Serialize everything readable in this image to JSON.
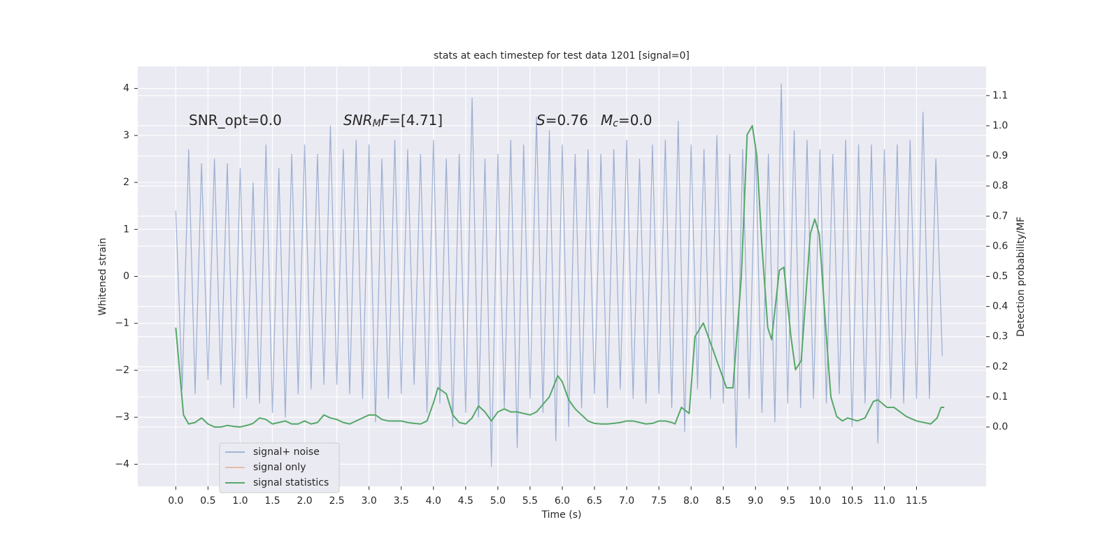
{
  "chart_data": {
    "type": "line",
    "title": "stats at each timestep for test data 1201 [signal=0]",
    "xlabel": "Time (s)",
    "ylabel": "Whitened strain",
    "y2label": "Detection probability/MF",
    "annotations": [
      {
        "parts": [
          {
            "text": "SNR_opt=0.0"
          }
        ]
      },
      {
        "parts": [
          {
            "text": "SNR",
            "style": "italic"
          },
          {
            "text": "M",
            "style": "sub"
          },
          {
            "text": "F",
            "style": "italic"
          },
          {
            "text": "=[4.71]"
          }
        ]
      },
      {
        "parts": [
          {
            "text": "S",
            "style": "italic"
          },
          {
            "text": "=0.76"
          }
        ]
      },
      {
        "parts": [
          {
            "text": "M",
            "style": "italic"
          },
          {
            "text": "c",
            "style": "sub"
          },
          {
            "text": "=0.0"
          }
        ]
      }
    ],
    "xlim": [
      -0.59,
      12.58
    ],
    "ylim": [
      -4.47,
      4.47
    ],
    "y2lim": [
      -0.197,
      1.197
    ],
    "xticks": [
      {
        "value": 0,
        "label": "0.0"
      },
      {
        "value": 0.5,
        "label": "0.5"
      },
      {
        "value": 1,
        "label": "1.0"
      },
      {
        "value": 1.5,
        "label": "1.5"
      },
      {
        "value": 2,
        "label": "2.0"
      },
      {
        "value": 2.5,
        "label": "2.5"
      },
      {
        "value": 3,
        "label": "3.0"
      },
      {
        "value": 3.5,
        "label": "3.5"
      },
      {
        "value": 4,
        "label": "4.0"
      },
      {
        "value": 4.5,
        "label": "4.5"
      },
      {
        "value": 5,
        "label": "5.0"
      },
      {
        "value": 5.5,
        "label": "5.5"
      },
      {
        "value": 6,
        "label": "6.0"
      },
      {
        "value": 6.5,
        "label": "6.5"
      },
      {
        "value": 7,
        "label": "7.0"
      },
      {
        "value": 7.5,
        "label": "7.5"
      },
      {
        "value": 8,
        "label": "8.0"
      },
      {
        "value": 8.5,
        "label": "8.5"
      },
      {
        "value": 9,
        "label": "9.0"
      },
      {
        "value": 9.5,
        "label": "9.5"
      },
      {
        "value": 10,
        "label": "10.0"
      },
      {
        "value": 10.5,
        "label": "10.5"
      },
      {
        "value": 11,
        "label": "11.0"
      },
      {
        "value": 11.5,
        "label": "11.5"
      }
    ],
    "yticks": [
      {
        "value": -4,
        "label": "−4"
      },
      {
        "value": -3,
        "label": "−3"
      },
      {
        "value": -2,
        "label": "−2"
      },
      {
        "value": -1,
        "label": "−1"
      },
      0,
      1,
      2,
      3,
      4
    ],
    "y2ticks": [
      {
        "value": 0,
        "label": "0.0"
      },
      0.1,
      0.2,
      0.3,
      0.4,
      0.5,
      0.6,
      0.7,
      0.8,
      0.9,
      {
        "value": 1,
        "label": "1.0"
      },
      1.1
    ],
    "grid": true,
    "legend": "lower left",
    "series": [
      {
        "name": "signal+ noise",
        "color": "#4c72b0",
        "x": [
          0,
          0.1,
          0.2,
          0.3,
          0.4,
          0.5,
          0.6,
          0.7,
          0.8,
          0.9,
          1,
          1.1,
          1.2,
          1.3,
          1.4,
          1.5,
          1.6,
          1.7,
          1.8,
          1.9,
          2,
          2.1,
          2.2,
          2.3,
          2.4,
          2.5,
          2.6,
          2.7,
          2.8,
          2.9,
          3,
          3.1,
          3.2,
          3.3,
          3.4,
          3.5,
          3.6,
          3.7,
          3.8,
          3.9,
          4,
          4.1,
          4.2,
          4.3,
          4.4,
          4.5,
          4.6,
          4.7,
          4.8,
          4.9,
          5,
          5.1,
          5.2,
          5.3,
          5.4,
          5.5,
          5.6,
          5.7,
          5.8,
          5.9,
          6,
          6.1,
          6.2,
          6.3,
          6.4,
          6.5,
          6.6,
          6.7,
          6.8,
          6.9,
          7,
          7.1,
          7.2,
          7.3,
          7.4,
          7.5,
          7.6,
          7.7,
          7.8,
          7.9,
          8,
          8.1,
          8.2,
          8.3,
          8.4,
          8.5,
          8.6,
          8.7,
          8.8,
          8.9,
          9,
          9.1,
          9.2,
          9.3,
          9.4,
          9.5,
          9.6,
          9.7,
          9.8,
          9.9,
          10,
          10.1,
          10.2,
          10.3,
          10.4,
          10.5,
          10.6,
          10.7,
          10.8,
          10.9,
          11,
          11.1,
          11.2,
          11.3,
          11.4,
          11.5,
          11.6,
          11.7,
          11.8,
          11.9
        ],
        "values": [
          1.4,
          -2.4,
          2.7,
          -2.5,
          2.4,
          -2.2,
          2.5,
          -2.3,
          2.4,
          -2.8,
          2.3,
          -2.6,
          2.0,
          -2.7,
          2.8,
          -2.9,
          2.3,
          -3.0,
          2.6,
          -2.5,
          2.8,
          -2.4,
          2.6,
          -2.3,
          3.2,
          -2.3,
          2.7,
          -2.5,
          2.9,
          -2.6,
          2.8,
          -3.1,
          2.5,
          -2.6,
          2.9,
          -2.5,
          2.7,
          -2.3,
          2.6,
          -2.9,
          2.9,
          -2.7,
          2.5,
          -3.2,
          2.6,
          -2.9,
          3.8,
          -3.0,
          2.5,
          -4.05,
          2.6,
          -2.8,
          2.9,
          -3.65,
          2.8,
          -2.6,
          3.4,
          -2.9,
          3.1,
          -3.5,
          2.8,
          -3.2,
          2.6,
          -2.8,
          2.7,
          -2.5,
          2.6,
          -2.8,
          2.7,
          -2.4,
          2.9,
          -2.6,
          2.5,
          -2.7,
          2.8,
          -2.5,
          2.9,
          -2.8,
          3.3,
          -3.3,
          2.8,
          -2.4,
          2.7,
          -2.6,
          3.0,
          -2.7,
          2.6,
          -3.65,
          2.7,
          -2.6,
          2.8,
          -2.9,
          2.6,
          -3.1,
          4.1,
          -2.7,
          3.1,
          -2.8,
          2.9,
          -2.6,
          2.7,
          -2.7,
          2.6,
          -2.5,
          2.9,
          -3.2,
          2.8,
          -2.7,
          2.8,
          -3.55,
          2.7,
          -2.6,
          2.8,
          -2.7,
          2.9,
          -2.6,
          3.5,
          -2.6,
          2.5,
          -1.7
        ]
      },
      {
        "name": "signal only",
        "color": "#dd8452",
        "x": [],
        "values": []
      },
      {
        "name": "signal statistics",
        "color": "#55a868",
        "axis": "y2",
        "x": [
          0,
          0.12,
          0.2,
          0.3,
          0.4,
          0.5,
          0.6,
          0.7,
          0.8,
          0.9,
          1,
          1.1,
          1.2,
          1.3,
          1.4,
          1.5,
          1.6,
          1.7,
          1.8,
          1.9,
          2,
          2.1,
          2.2,
          2.3,
          2.4,
          2.5,
          2.6,
          2.7,
          2.8,
          2.9,
          3,
          3.1,
          3.2,
          3.3,
          3.4,
          3.5,
          3.6,
          3.7,
          3.8,
          3.9,
          4,
          4.07,
          4.2,
          4.3,
          4.4,
          4.5,
          4.6,
          4.7,
          4.8,
          4.9,
          5,
          5.1,
          5.2,
          5.3,
          5.4,
          5.5,
          5.6,
          5.7,
          5.8,
          5.93,
          6,
          6.1,
          6.2,
          6.3,
          6.4,
          6.5,
          6.6,
          6.7,
          6.8,
          6.9,
          7,
          7.1,
          7.2,
          7.3,
          7.4,
          7.5,
          7.6,
          7.7,
          7.75,
          7.85,
          7.97,
          8.06,
          8.19,
          8.3,
          8.4,
          8.55,
          8.65,
          8.78,
          8.87,
          8.95,
          9.02,
          9.1,
          9.19,
          9.25,
          9.37,
          9.44,
          9.55,
          9.62,
          9.71,
          9.85,
          9.92,
          9.99,
          10.1,
          10.17,
          10.26,
          10.35,
          10.43,
          10.58,
          10.7,
          10.83,
          10.9,
          11.04,
          11.15,
          11.34,
          11.5,
          11.72,
          11.82,
          11.88,
          11.93
        ],
        "values": [
          0.33,
          0.04,
          0.01,
          0.015,
          0.03,
          0.01,
          0,
          0,
          0.005,
          0.002,
          0,
          0.005,
          0.012,
          0.03,
          0.025,
          0.01,
          0.015,
          0.02,
          0.01,
          0.01,
          0.02,
          0.01,
          0.015,
          0.04,
          0.03,
          0.025,
          0.015,
          0.01,
          0.02,
          0.03,
          0.04,
          0.04,
          0.025,
          0.02,
          0.02,
          0.02,
          0.015,
          0.012,
          0.01,
          0.02,
          0.08,
          0.13,
          0.11,
          0.04,
          0.015,
          0.01,
          0.03,
          0.07,
          0.05,
          0.02,
          0.05,
          0.06,
          0.05,
          0.05,
          0.045,
          0.04,
          0.05,
          0.075,
          0.1,
          0.17,
          0.15,
          0.09,
          0.06,
          0.04,
          0.02,
          0.012,
          0.01,
          0.01,
          0.012,
          0.015,
          0.02,
          0.02,
          0.015,
          0.01,
          0.012,
          0.02,
          0.02,
          0.015,
          0.01,
          0.065,
          0.045,
          0.3,
          0.345,
          0.28,
          0.22,
          0.13,
          0.13,
          0.5,
          0.97,
          1.0,
          0.9,
          0.6,
          0.33,
          0.29,
          0.52,
          0.53,
          0.3,
          0.19,
          0.22,
          0.64,
          0.69,
          0.64,
          0.3,
          0.1,
          0.035,
          0.02,
          0.03,
          0.02,
          0.03,
          0.085,
          0.09,
          0.065,
          0.065,
          0.035,
          0.02,
          0.01,
          0.03,
          0.065,
          0.065
        ]
      }
    ]
  }
}
